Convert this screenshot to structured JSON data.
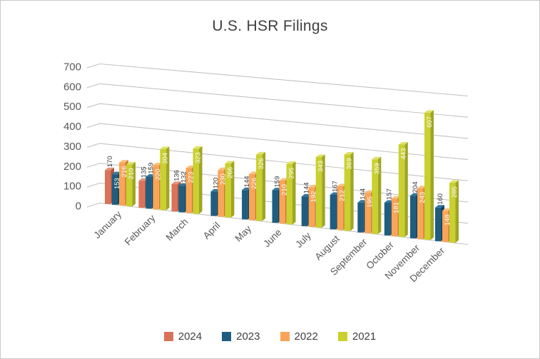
{
  "window": {
    "background": "#ffffff",
    "border_color": "#c9c9c9"
  },
  "chart_data": {
    "type": "bar",
    "projection": "3d",
    "title": "U.S. HSR Filings",
    "categories": [
      "January",
      "February",
      "March",
      "April",
      "May",
      "June",
      "July",
      "August",
      "September",
      "October",
      "November",
      "December"
    ],
    "series": [
      {
        "name": "2024",
        "color": "#d9735a",
        "color_side": "#a85441",
        "color_top": "#e69078",
        "label_placement": "outside",
        "values": [
          170,
          135,
          136,
          null,
          null,
          null,
          null,
          null,
          null,
          null,
          null,
          null
        ]
      },
      {
        "name": "2023",
        "color": "#1f5d80",
        "color_side": "#164257",
        "color_top": "#2f77a0",
        "label_placement": "outside",
        "inside_label_categories": [
          "January"
        ],
        "values": [
          153,
          159,
          132,
          120,
          144,
          159,
          144,
          167,
          144,
          157,
          204,
          160
        ]
      },
      {
        "name": "2022",
        "color": "#f9a458",
        "color_side": "#c97e3c",
        "color_top": "#fbc07e",
        "label_placement": "inside",
        "values": [
          216,
          220,
          223,
          230,
          226,
          210,
          192,
          212,
          195,
          181,
          243,
          148
        ]
      },
      {
        "name": "2021",
        "color": "#c9d02f",
        "color_side": "#9fa524",
        "color_top": "#dee368",
        "label_placement": "inside",
        "values": [
          210,
          304,
          323,
          266,
          326,
          295,
          343,
          369,
          359,
          443,
          607,
          285
        ]
      }
    ],
    "y_ticks": [
      0,
      100,
      200,
      300,
      400,
      500,
      600,
      700
    ],
    "ylim": [
      0,
      700
    ],
    "grid": true,
    "legend_position": "bottom",
    "axis_label_color": "#595959",
    "gridline_color": "#c3c3c3",
    "data_label_colors": {
      "inside": "#ffffff",
      "outside": "#404040"
    }
  }
}
